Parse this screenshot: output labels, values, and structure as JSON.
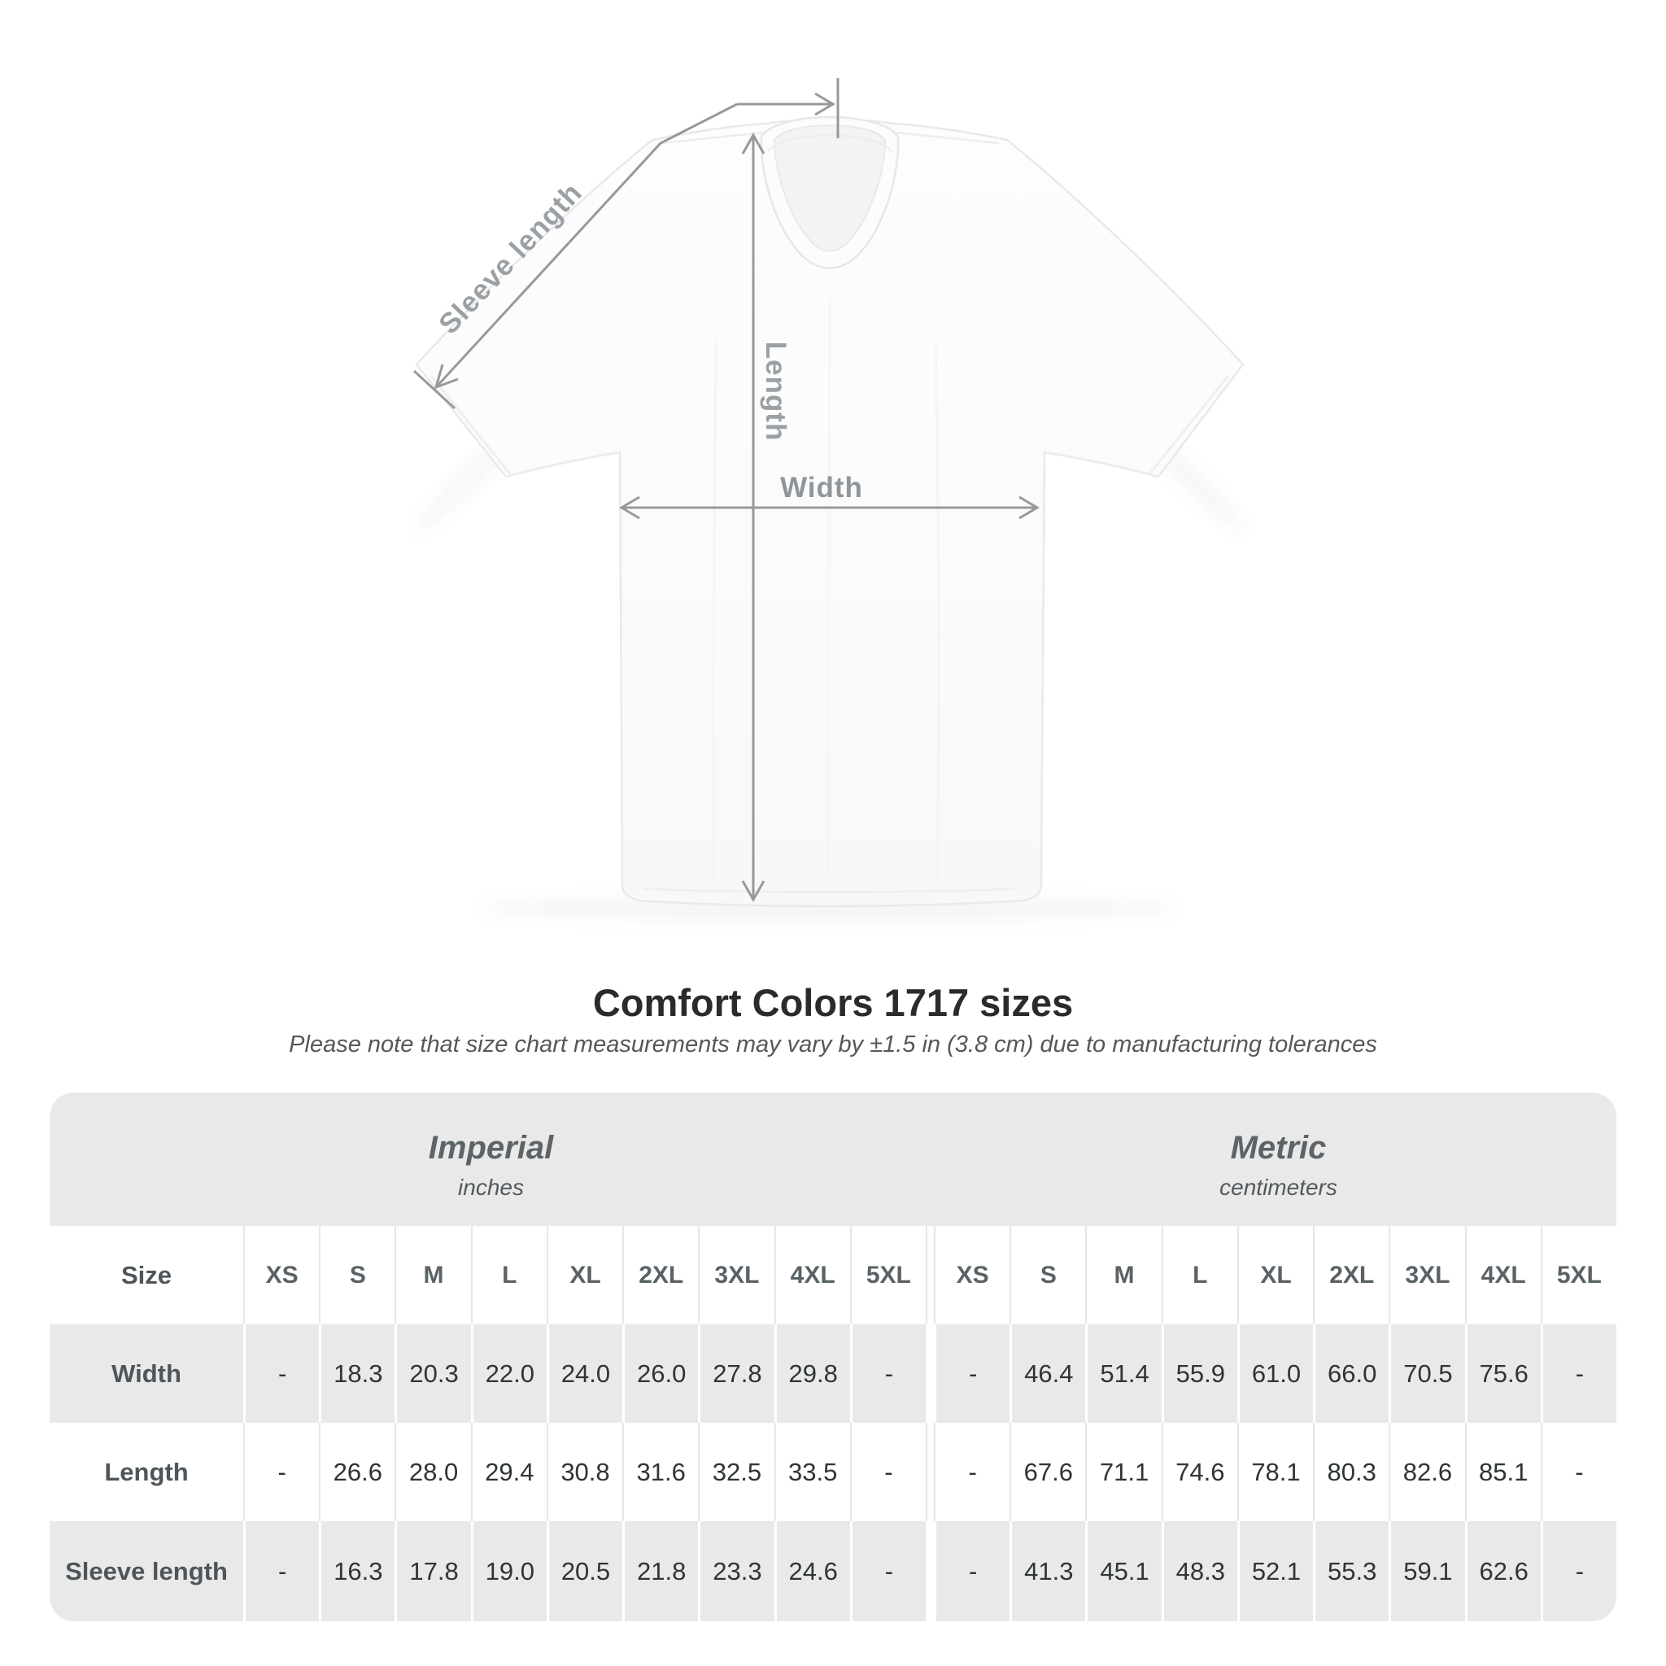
{
  "diagram": {
    "sleeve_length_label": "Sleeve length",
    "length_label": "Length",
    "width_label": "Width",
    "line_color": "#97999b",
    "label_color": "#9aa0a3"
  },
  "heading": {
    "title": "Comfort Colors 1717 sizes",
    "subtitle": "Please note that size chart measurements may vary by ±1.5 in (3.8 cm) due to manufacturing tolerances"
  },
  "size_chart": {
    "sections": [
      {
        "id": "imperial",
        "name": "Imperial",
        "unit": "inches"
      },
      {
        "id": "metric",
        "name": "Metric",
        "unit": "centimeters"
      }
    ],
    "size_column_label": "Size",
    "sizes": [
      "XS",
      "S",
      "M",
      "L",
      "XL",
      "2XL",
      "3XL",
      "4XL",
      "5XL"
    ],
    "rows": [
      {
        "label": "Width",
        "imperial": [
          "-",
          "18.3",
          "20.3",
          "22.0",
          "24.0",
          "26.0",
          "27.8",
          "29.8",
          "-"
        ],
        "metric": [
          "-",
          "46.4",
          "51.4",
          "55.9",
          "61.0",
          "66.0",
          "70.5",
          "75.6",
          "-"
        ]
      },
      {
        "label": "Length",
        "imperial": [
          "-",
          "26.6",
          "28.0",
          "29.4",
          "30.8",
          "31.6",
          "32.5",
          "33.5",
          "-"
        ],
        "metric": [
          "-",
          "67.6",
          "71.1",
          "74.6",
          "78.1",
          "80.3",
          "82.6",
          "85.1",
          "-"
        ]
      },
      {
        "label": "Sleeve length",
        "imperial": [
          "-",
          "16.3",
          "17.8",
          "19.0",
          "20.5",
          "21.8",
          "23.3",
          "24.6",
          "-"
        ],
        "metric": [
          "-",
          "41.3",
          "45.1",
          "48.3",
          "52.1",
          "55.3",
          "59.1",
          "62.6",
          "-"
        ]
      }
    ],
    "colors": {
      "band": "#e9e9e9",
      "alt_row": "#e9e9e9",
      "header_text": "#5a6266",
      "value_text": "#2f3437"
    }
  }
}
